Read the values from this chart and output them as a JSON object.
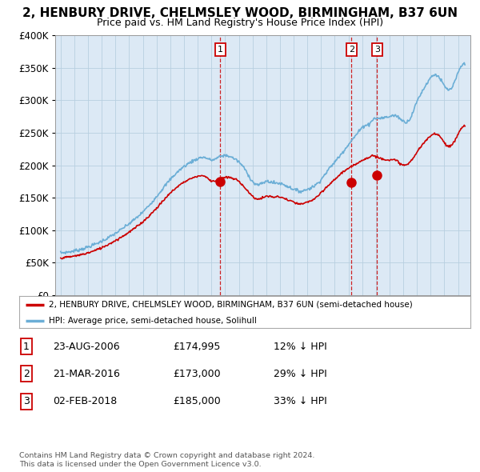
{
  "title": "2, HENBURY DRIVE, CHELMSLEY WOOD, BIRMINGHAM, B37 6UN",
  "subtitle": "Price paid vs. HM Land Registry's House Price Index (HPI)",
  "hpi_label": "HPI: Average price, semi-detached house, Solihull",
  "property_label": "2, HENBURY DRIVE, CHELMSLEY WOOD, BIRMINGHAM, B37 6UN (semi-detached house)",
  "footer1": "Contains HM Land Registry data © Crown copyright and database right 2024.",
  "footer2": "This data is licensed under the Open Government Licence v3.0.",
  "transactions": [
    {
      "num": 1,
      "date": "23-AUG-2006",
      "price": "£174,995",
      "hpi_diff": "12% ↓ HPI",
      "year": 2006.65
    },
    {
      "num": 2,
      "date": "21-MAR-2016",
      "price": "£173,000",
      "hpi_diff": "29% ↓ HPI",
      "year": 2016.22
    },
    {
      "num": 3,
      "date": "02-FEB-2018",
      "price": "£185,000",
      "hpi_diff": "33% ↓ HPI",
      "year": 2018.09
    }
  ],
  "transaction_prices": [
    174995,
    173000,
    185000
  ],
  "transaction_years": [
    2006.65,
    2016.22,
    2018.09
  ],
  "hpi_color": "#6baed6",
  "property_color": "#cc0000",
  "marker_color": "#cc0000",
  "vline_color": "#cc0000",
  "ylim": [
    0,
    400000
  ],
  "xlim_start": 1994.6,
  "xlim_end": 2024.9,
  "plot_bg": "#dce9f5",
  "grid_color": "#b8cfe0",
  "fig_bg": "#ffffff"
}
